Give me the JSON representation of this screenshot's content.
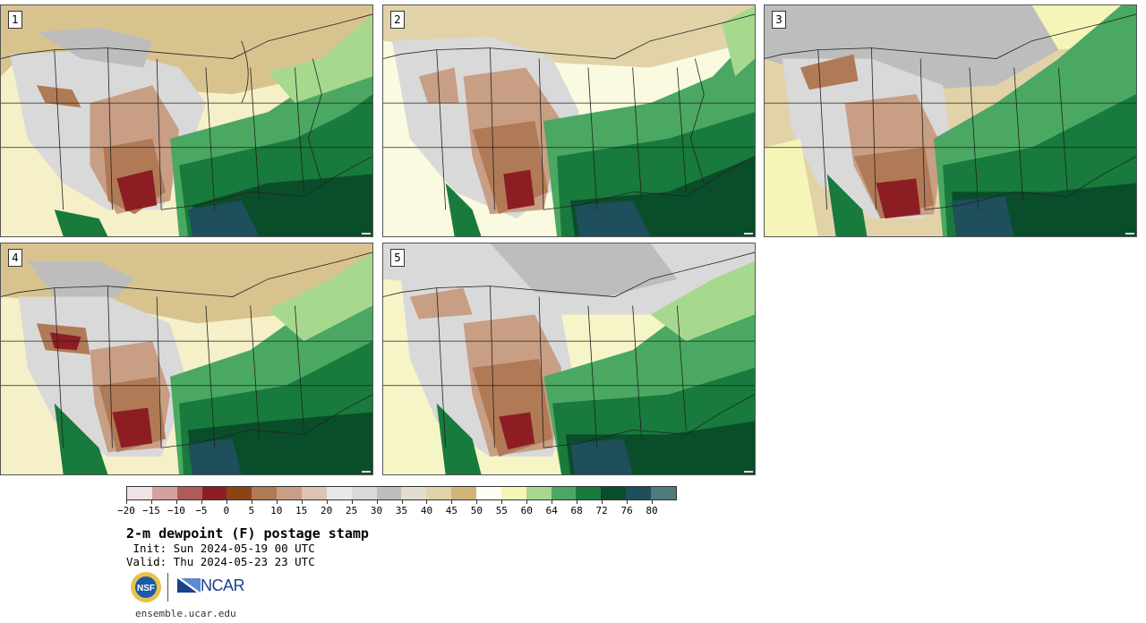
{
  "panels": [
    {
      "label": "1"
    },
    {
      "label": "2"
    },
    {
      "label": "3"
    },
    {
      "label": "4"
    },
    {
      "label": "5"
    }
  ],
  "colorbar": {
    "ticks": [
      "−20",
      "−15",
      "−10",
      "−5",
      "0",
      "5",
      "10",
      "15",
      "20",
      "25",
      "30",
      "35",
      "40",
      "45",
      "50",
      "55",
      "60",
      "64",
      "68",
      "72",
      "76",
      "80"
    ],
    "colors": [
      "#f1e3e3",
      "#d4a1a1",
      "#b05a5a",
      "#8c1e23",
      "#8b4513",
      "#b07a56",
      "#c89e84",
      "#dcc3b2",
      "#e8e8e8",
      "#d9d9d9",
      "#bdbdbd",
      "#e2ddcf",
      "#e2d2a8",
      "#d2b477",
      "#fdfdf0",
      "#f6f5b8",
      "#a6d98e",
      "#4aa862",
      "#187a3c",
      "#0a4d2a",
      "#1f4e5c",
      "#4f7a7c"
    ]
  },
  "title": "2-m dewpoint (F) postage stamp",
  "init": " Init: Sun 2024-05-19 00 UTC",
  "valid": "Valid: Thu 2024-05-23 23 UTC",
  "logos": {
    "nsf": "NSF",
    "ncar": "NCAR"
  },
  "site": "ensemble.ucar.edu"
}
